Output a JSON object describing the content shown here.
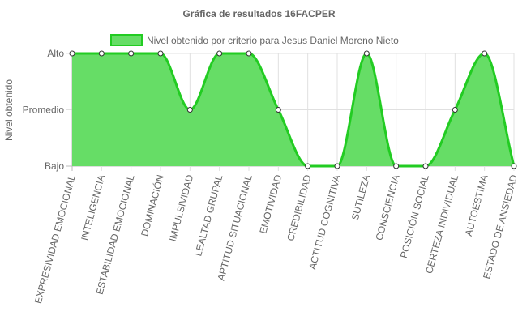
{
  "chart_data": {
    "type": "line",
    "title": "Gráfica de resultados 16FACPER",
    "ylabel": "Nivel obtenido",
    "xlabel": "",
    "y_levels": [
      "Bajo",
      "Promedio",
      "Alto"
    ],
    "ylim": [
      0,
      2
    ],
    "grid": true,
    "legend_position": "top",
    "categories": [
      "EXPRESIVIDAD EMOCIONAL",
      "INTELIGENCIA",
      "ESTABILIDAD EMOCIONAL",
      "DOMINACIÓN",
      "IMPULSIVIDAD",
      "LEALTAD GRUPAL",
      "APTITUD SITUACIONAL",
      "EMOTIVIDAD",
      "CREDIBILIDAD",
      "ACTITUD COGNITIVA",
      "SUTILEZA",
      "CONSCIENCIA",
      "POSICIÓN SOCIAL",
      "CERTEZA INDIVIDUAL",
      "AUTOESTIMA",
      "ESTADO DE ANSIEDAD"
    ],
    "series": [
      {
        "name": "Nivel obtenido por criterio para Jesus Daniel Moreno Nieto",
        "values": [
          2,
          2,
          2,
          2,
          1,
          2,
          2,
          1,
          0,
          0,
          2,
          0,
          0,
          1,
          2,
          0
        ],
        "line_color": "#22cc22",
        "fill_color": "#66dd66"
      }
    ]
  }
}
